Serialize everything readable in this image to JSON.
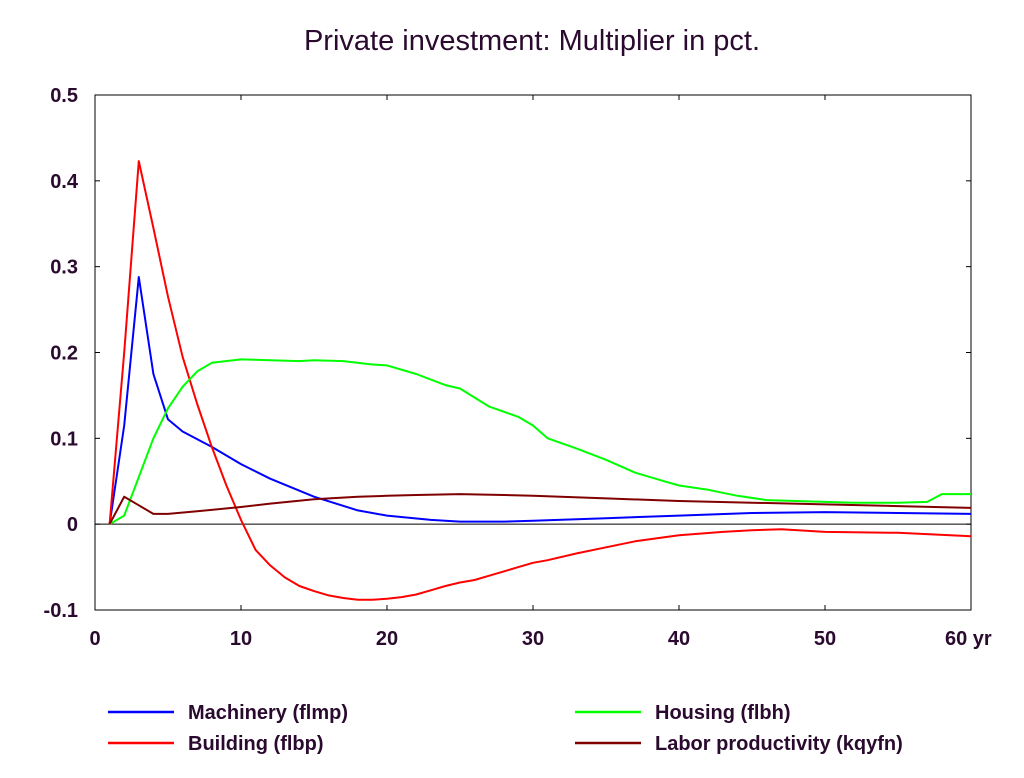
{
  "chart_data": {
    "type": "line",
    "title": "Private investment: Multiplier in pct.",
    "xlabel": "",
    "ylabel": "",
    "x_unit": "yr",
    "xlim": [
      0,
      60
    ],
    "ylim": [
      -0.1,
      0.5
    ],
    "xticks": [
      0,
      10,
      20,
      30,
      40,
      50,
      60
    ],
    "yticks": [
      -0.1,
      0,
      0.1,
      0.2,
      0.3,
      0.4,
      0.5
    ],
    "ytick_labels": [
      "-0.1",
      "0",
      "0.1",
      "0.2",
      "0.3",
      "0.4",
      "0.5"
    ],
    "grid": false,
    "legend_position": "bottom",
    "series": [
      {
        "name": "Machinery (flmp)",
        "color": "#0000ff",
        "x": [
          1,
          2,
          3,
          4,
          5,
          6,
          8,
          10,
          12,
          15,
          18,
          20,
          23,
          25,
          28,
          30,
          35,
          40,
          45,
          50,
          55,
          60
        ],
        "y": [
          0,
          0.115,
          0.288,
          0.175,
          0.122,
          0.108,
          0.09,
          0.07,
          0.053,
          0.032,
          0.016,
          0.01,
          0.005,
          0.003,
          0.003,
          0.004,
          0.007,
          0.01,
          0.013,
          0.014,
          0.013,
          0.012
        ]
      },
      {
        "name": "Building (flbp)",
        "color": "#ff0000",
        "x": [
          1,
          2,
          3,
          4,
          5,
          6,
          7,
          8,
          9,
          10,
          11,
          12,
          13,
          14,
          15,
          16,
          17,
          18,
          19,
          20,
          21,
          22,
          23,
          24,
          25,
          26,
          27,
          28,
          29,
          30,
          31,
          33,
          35,
          37,
          40,
          43,
          45,
          47,
          50,
          55,
          60
        ],
        "y": [
          0,
          0.2,
          0.423,
          0.345,
          0.265,
          0.195,
          0.14,
          0.09,
          0.045,
          0.005,
          -0.03,
          -0.048,
          -0.062,
          -0.072,
          -0.078,
          -0.083,
          -0.086,
          -0.088,
          -0.088,
          -0.087,
          -0.085,
          -0.082,
          -0.077,
          -0.072,
          -0.068,
          -0.065,
          -0.06,
          -0.055,
          -0.05,
          -0.045,
          -0.042,
          -0.034,
          -0.027,
          -0.02,
          -0.013,
          -0.009,
          -0.007,
          -0.006,
          -0.009,
          -0.01,
          -0.014
        ]
      },
      {
        "name": "Housing (flbh)",
        "color": "#00ff00",
        "x": [
          1,
          2,
          3,
          4,
          5,
          6,
          7,
          8,
          10,
          12,
          14,
          15,
          17,
          19,
          20,
          22,
          24,
          25,
          27,
          29,
          30,
          31,
          33,
          35,
          37,
          39,
          40,
          42,
          44,
          46,
          48,
          50,
          52,
          55,
          57,
          58,
          60
        ],
        "y": [
          0,
          0.01,
          0.055,
          0.1,
          0.135,
          0.16,
          0.178,
          0.188,
          0.192,
          0.191,
          0.19,
          0.191,
          0.19,
          0.186,
          0.185,
          0.175,
          0.162,
          0.158,
          0.137,
          0.125,
          0.115,
          0.1,
          0.088,
          0.075,
          0.06,
          0.05,
          0.045,
          0.04,
          0.033,
          0.028,
          0.027,
          0.026,
          0.025,
          0.025,
          0.026,
          0.035,
          0.035
        ]
      },
      {
        "name": "Labor productivity (kqyfn)",
        "color": "#800000",
        "x": [
          1,
          2,
          3,
          4,
          5,
          7,
          10,
          12,
          15,
          18,
          20,
          22,
          25,
          28,
          30,
          35,
          40,
          45,
          50,
          55,
          60
        ],
        "y": [
          0,
          0.032,
          0.022,
          0.012,
          0.012,
          0.015,
          0.02,
          0.024,
          0.029,
          0.032,
          0.033,
          0.034,
          0.035,
          0.034,
          0.033,
          0.03,
          0.027,
          0.025,
          0.023,
          0.021,
          0.019
        ]
      }
    ]
  }
}
